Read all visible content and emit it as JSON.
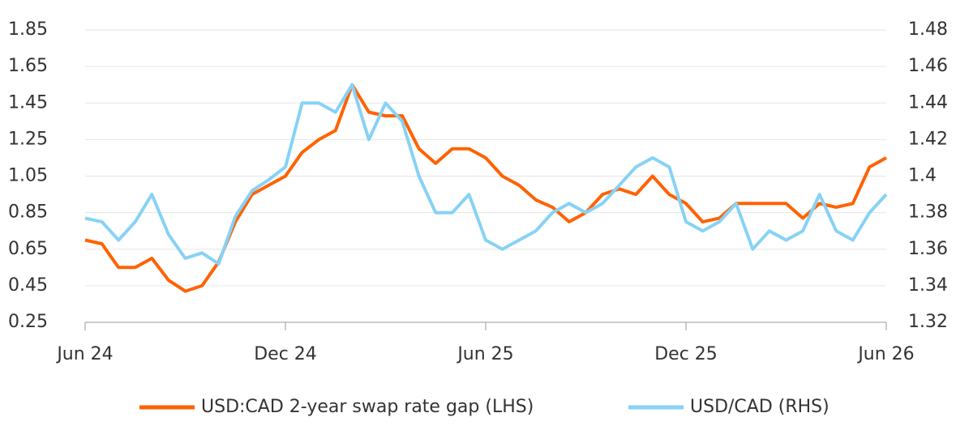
{
  "chart_data": {
    "type": "line",
    "categories": [
      "Jun 24",
      null,
      null,
      null,
      null,
      null,
      null,
      null,
      null,
      null,
      null,
      null,
      "Dec 24",
      null,
      null,
      null,
      null,
      null,
      null,
      null,
      null,
      null,
      null,
      null,
      "Jun 25",
      null,
      null,
      null,
      null,
      null,
      null,
      null,
      null,
      null,
      null,
      null,
      "Dec 25",
      null,
      null,
      null,
      null,
      null,
      null,
      null,
      null,
      null,
      null,
      null,
      "Jun 26"
    ],
    "series": [
      {
        "name": "USD:CAD 2-year swap rate gap (LHS)",
        "color": "#ff6200",
        "axis": "y",
        "values": [
          0.7,
          0.68,
          0.55,
          0.55,
          0.6,
          0.48,
          0.42,
          0.45,
          0.58,
          0.8,
          0.95,
          1.0,
          1.05,
          1.18,
          1.25,
          1.3,
          1.55,
          1.4,
          1.38,
          1.38,
          1.2,
          1.12,
          1.2,
          1.2,
          1.15,
          1.05,
          1.0,
          0.92,
          0.88,
          0.8,
          0.85,
          0.95,
          0.98,
          0.95,
          1.05,
          0.95,
          0.9,
          0.8,
          0.82,
          0.9,
          0.9,
          0.9,
          0.9,
          0.82,
          0.9,
          0.88,
          0.9,
          1.1,
          1.15
        ]
      },
      {
        "name": "USD/CAD (RHS)",
        "color": "#87d2f5",
        "axis": "y2",
        "values": [
          1.377,
          1.375,
          1.365,
          1.375,
          1.39,
          1.368,
          1.355,
          1.358,
          1.352,
          1.378,
          1.392,
          1.398,
          1.405,
          1.44,
          1.44,
          1.435,
          1.45,
          1.42,
          1.44,
          1.43,
          1.4,
          1.38,
          1.38,
          1.39,
          1.365,
          1.36,
          1.365,
          1.37,
          1.38,
          1.385,
          1.38,
          1.385,
          1.395,
          1.405,
          1.41,
          1.405,
          1.375,
          1.37,
          1.375,
          1.385,
          1.36,
          1.37,
          1.365,
          1.37,
          1.39,
          1.37,
          1.365,
          1.38,
          1.39
        ]
      }
    ],
    "ylim": [
      0.25,
      1.85
    ],
    "yticks": [
      0.25,
      0.45,
      0.65,
      0.85,
      1.05,
      1.25,
      1.45,
      1.65,
      1.85
    ],
    "y2lim": [
      1.32,
      1.48
    ],
    "y2ticks": [
      1.32,
      1.34,
      1.36,
      1.38,
      1.4,
      1.42,
      1.44,
      1.46,
      1.48
    ],
    "grid": true,
    "legend": "bottom"
  }
}
